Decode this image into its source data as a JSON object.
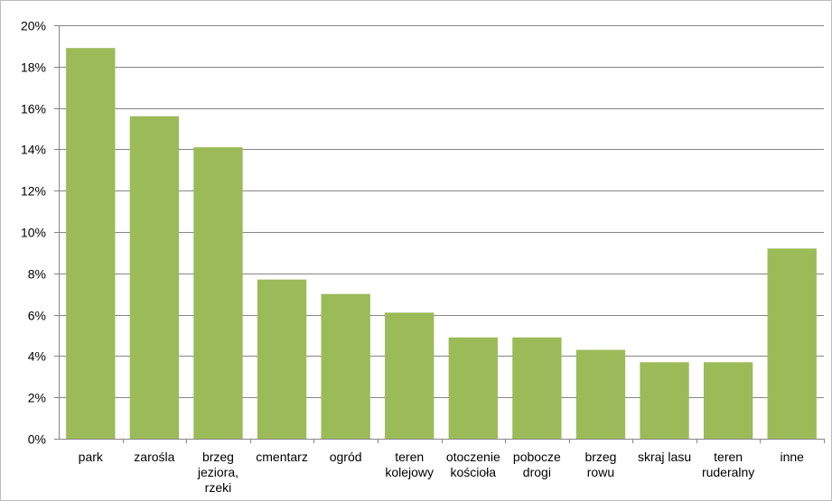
{
  "chart_data": {
    "type": "bar",
    "title": "",
    "xlabel": "",
    "ylabel": "",
    "categories": [
      [
        "park"
      ],
      [
        "zarośla"
      ],
      [
        "brzeg",
        "jeziora,",
        "rzeki"
      ],
      [
        "cmentarz"
      ],
      [
        "ogród"
      ],
      [
        "teren",
        "kolejowy"
      ],
      [
        "otoczenie",
        "kościoła"
      ],
      [
        "pobocze",
        "drogi"
      ],
      [
        "brzeg",
        "rowu"
      ],
      [
        "skraj lasu"
      ],
      [
        "teren",
        "ruderalny"
      ],
      [
        "inne"
      ]
    ],
    "values": [
      18.9,
      15.6,
      14.1,
      7.7,
      7.0,
      6.1,
      4.9,
      4.9,
      4.3,
      3.7,
      3.7,
      9.2
    ],
    "ylim": [
      0,
      20
    ],
    "yticks": [
      0,
      2,
      4,
      6,
      8,
      10,
      12,
      14,
      16,
      18,
      20
    ],
    "ytick_labels": [
      "0%",
      "2%",
      "4%",
      "6%",
      "8%",
      "10%",
      "12%",
      "14%",
      "16%",
      "18%",
      "20%"
    ],
    "grid": true,
    "legend": "none",
    "colors": {
      "bar": "#9bbb59",
      "grid": "#868686",
      "axis": "#868686",
      "frame": "#bcbcbc"
    }
  }
}
